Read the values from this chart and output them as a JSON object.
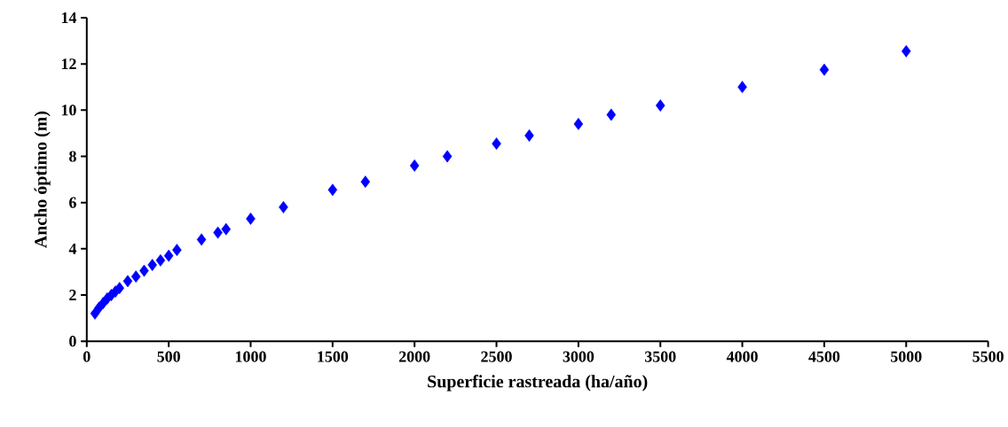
{
  "chart_data": {
    "type": "scatter",
    "xlabel": "Superficie rastreada  (ha/año)",
    "ylabel": "Ancho óptimo (m)",
    "x": [
      50,
      75,
      100,
      125,
      150,
      175,
      200,
      250,
      300,
      350,
      400,
      450,
      500,
      550,
      700,
      800,
      850,
      1000,
      1200,
      1500,
      1700,
      2000,
      2200,
      2500,
      2700,
      3000,
      3200,
      3500,
      4000,
      4500,
      5000
    ],
    "series": [
      {
        "color": "#0000ff",
        "values": [
          1.2,
          1.45,
          1.65,
          1.85,
          2.0,
          2.15,
          2.3,
          2.6,
          2.8,
          3.05,
          3.3,
          3.5,
          3.7,
          3.95,
          4.4,
          4.7,
          4.85,
          5.3,
          5.8,
          6.55,
          6.9,
          7.6,
          8.0,
          8.55,
          8.9,
          9.4,
          9.8,
          10.2,
          11.0,
          11.75,
          12.55
        ]
      }
    ],
    "marker": "diamond",
    "xlim": [
      0,
      5500
    ],
    "xticks": [
      0,
      500,
      1000,
      1500,
      2000,
      2500,
      3000,
      3500,
      4000,
      4500,
      5000,
      5500
    ],
    "ylim": [
      0,
      14
    ],
    "yticks": [
      0,
      2,
      4,
      6,
      8,
      10,
      12,
      14
    ]
  }
}
